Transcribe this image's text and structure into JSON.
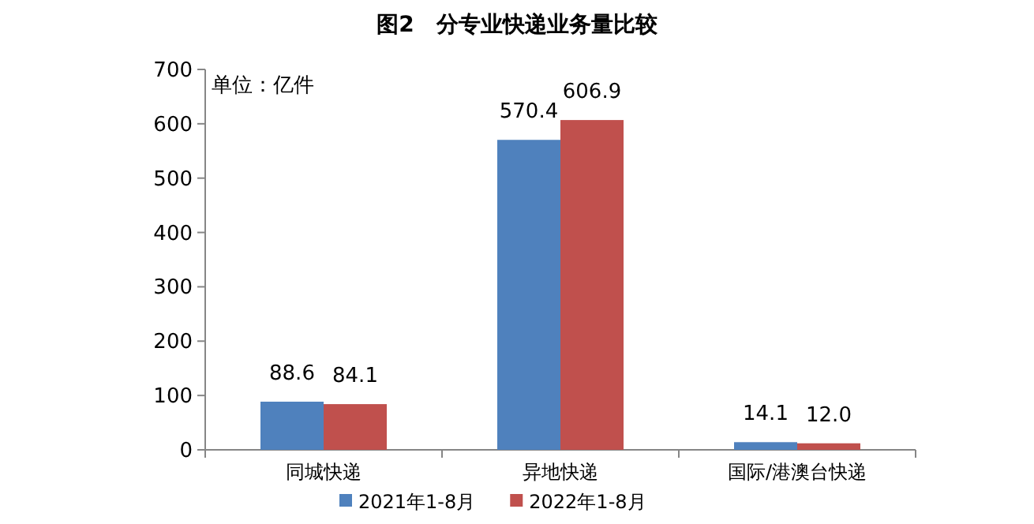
{
  "chart_data": {
    "type": "bar",
    "title": "图2　分专业快递业务量比较",
    "annotations": [
      "单位：亿件"
    ],
    "categories": [
      "同城快递",
      "异地快递",
      "国际/港澳台快递"
    ],
    "series": [
      {
        "name": "2021年1-8月",
        "color": "#4f81bd",
        "values": [
          88.6,
          570.4,
          14.1
        ],
        "value_labels": [
          "88.6",
          "570.4",
          "14.1"
        ]
      },
      {
        "name": "2022年1-8月",
        "color": "#c0504d",
        "values": [
          84.1,
          606.9,
          12.0
        ],
        "value_labels": [
          "84.1",
          "606.9",
          "12.0"
        ]
      }
    ],
    "ylim": [
      0,
      700
    ],
    "yticks": [
      0,
      100,
      200,
      300,
      400,
      500,
      600,
      700
    ],
    "legend": "bottom",
    "grid": false
  }
}
